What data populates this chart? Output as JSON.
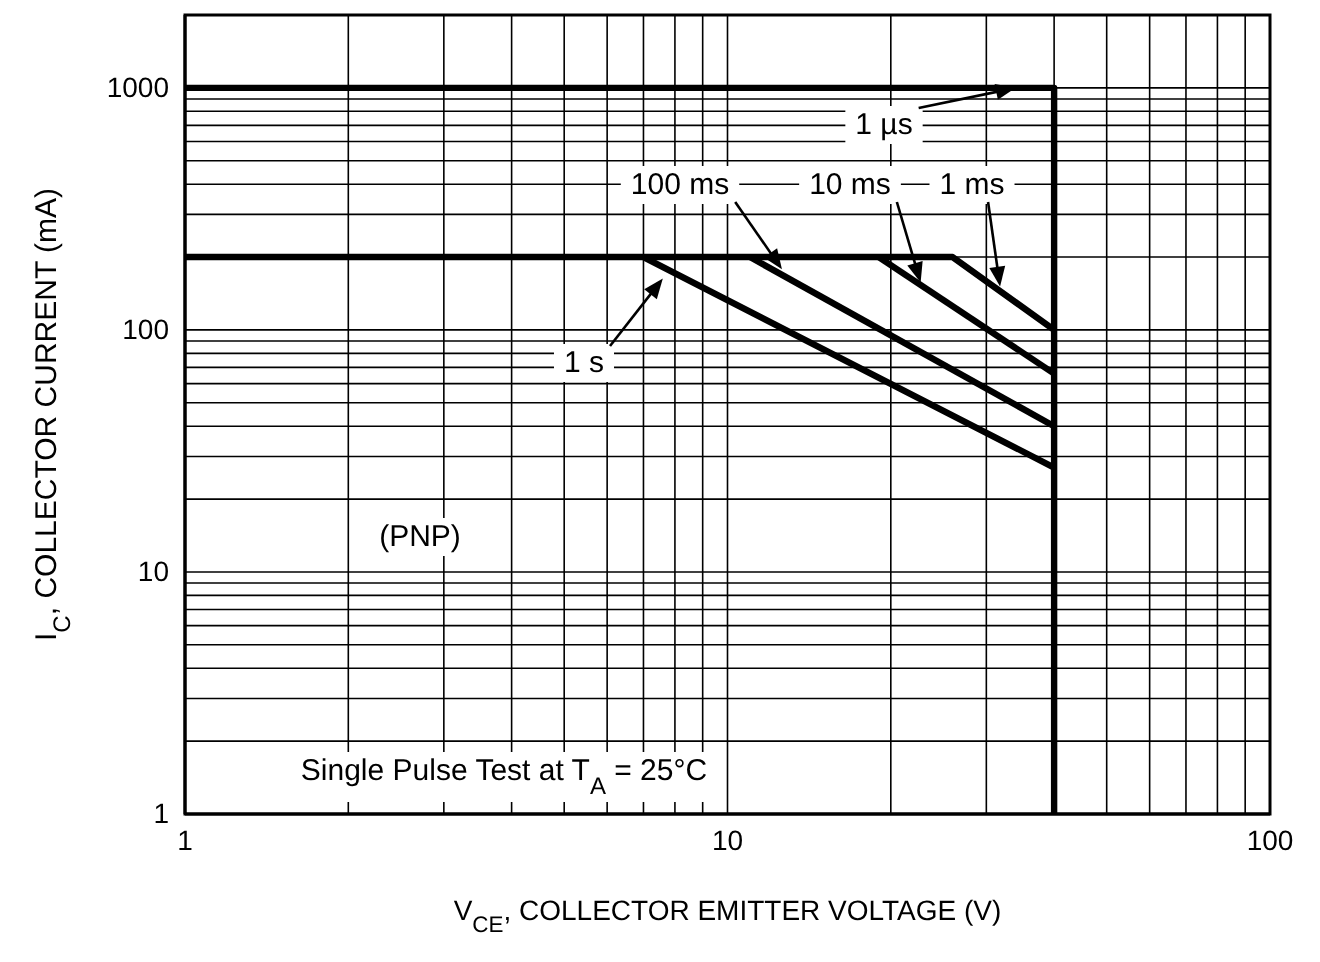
{
  "chart_data": {
    "type": "line",
    "xlabel": "V$_{CE}$, COLLECTOR EMITTER VOLTAGE (V)",
    "ylabel": "I$_{C}$, COLLECTOR CURRENT (mA)",
    "log": "xy",
    "grid": true,
    "marker": "none",
    "line_style": "solid",
    "xlim": [
      1,
      100
    ],
    "ylim": [
      1,
      2000
    ],
    "xticks": [
      1,
      {
        "value": 2,
        "label": null
      },
      {
        "value": 3,
        "label": null
      },
      {
        "value": 4,
        "label": null
      },
      {
        "value": 5,
        "label": null
      },
      {
        "value": 6,
        "label": null
      },
      {
        "value": 7,
        "label": null
      },
      {
        "value": 8,
        "label": null
      },
      {
        "value": 9,
        "label": null
      },
      10,
      {
        "value": 20,
        "label": null
      },
      {
        "value": 30,
        "label": null
      },
      {
        "value": 40,
        "label": null
      },
      {
        "value": 50,
        "label": null
      },
      {
        "value": 60,
        "label": null
      },
      {
        "value": 70,
        "label": null
      },
      {
        "value": 80,
        "label": null
      },
      {
        "value": 90,
        "label": null
      },
      100
    ],
    "yticks": [
      1,
      {
        "value": 2,
        "label": null
      },
      {
        "value": 3,
        "label": null
      },
      {
        "value": 4,
        "label": null
      },
      {
        "value": 5,
        "label": null
      },
      {
        "value": 6,
        "label": null
      },
      {
        "value": 7,
        "label": null
      },
      {
        "value": 8,
        "label": null
      },
      {
        "value": 9,
        "label": null
      },
      10,
      {
        "value": 20,
        "label": null
      },
      {
        "value": 30,
        "label": null
      },
      {
        "value": 40,
        "label": null
      },
      {
        "value": 50,
        "label": null
      },
      {
        "value": 60,
        "label": null
      },
      {
        "value": 70,
        "label": null
      },
      {
        "value": 80,
        "label": null
      },
      {
        "value": 90,
        "label": null
      },
      100,
      {
        "value": 200,
        "label": null
      },
      {
        "value": 300,
        "label": null
      },
      {
        "value": 400,
        "label": null
      },
      {
        "value": 500,
        "label": null
      },
      {
        "value": 600,
        "label": null
      },
      {
        "value": 700,
        "label": null
      },
      {
        "value": 800,
        "label": null
      },
      {
        "value": 900,
        "label": null
      },
      1000
    ],
    "series": [
      {
        "color": "#000000",
        "x": [
          1,
          40,
          40
        ],
        "values": [
          1000,
          1000,
          1
        ]
      },
      {
        "color": "#000000",
        "x": [
          1,
          7,
          40
        ],
        "values": [
          200,
          200,
          27
        ]
      },
      {
        "color": "#000000",
        "x": [
          11,
          40
        ],
        "values": [
          200,
          40
        ]
      },
      {
        "color": "#000000",
        "x": [
          19,
          40
        ],
        "values": [
          200,
          66
        ]
      },
      {
        "color": "#000000",
        "x": [
          7,
          26,
          40
        ],
        "values": [
          200,
          200,
          100
        ]
      }
    ],
    "annotations": [
      {
        "text": "1 µs",
        "x": 34,
        "y": 1000
      },
      {
        "text": "100 ms",
        "x": 12.6,
        "y": 178
      },
      {
        "text": "10 ms",
        "x": 22.7,
        "y": 157
      },
      {
        "text": "1 ms",
        "x": 31.8,
        "y": 151
      },
      {
        "text": "1 s",
        "x": 7.6,
        "y": 163
      },
      "(PNP)",
      "Single Pulse Test at T$_{A}$ = 25°C"
    ]
  }
}
